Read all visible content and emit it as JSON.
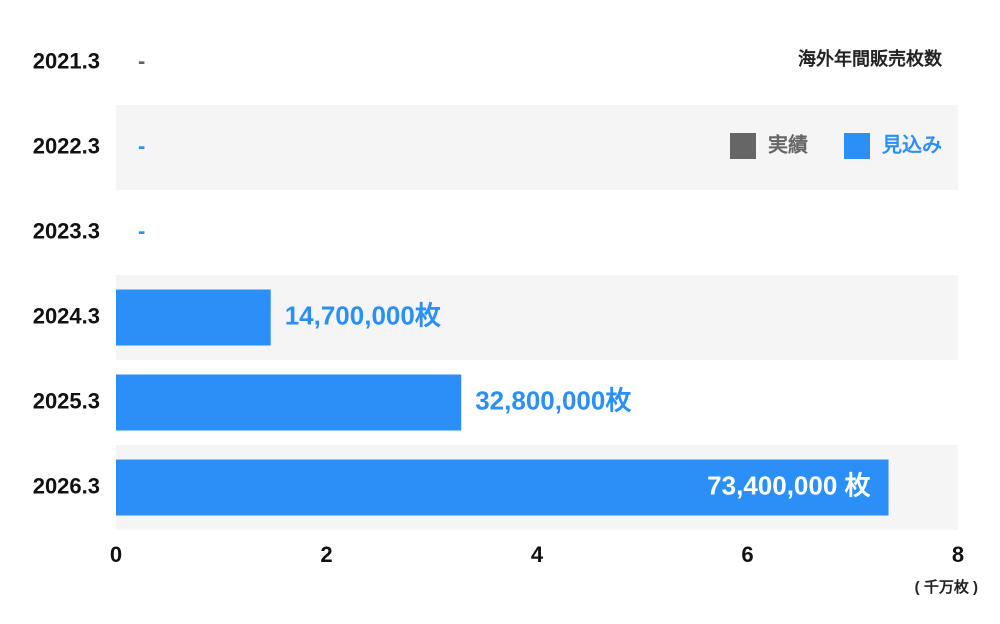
{
  "chart_data": {
    "type": "bar",
    "orientation": "horizontal",
    "title": "海外年間販売枚数",
    "categories": [
      "2021.3",
      "2022.3",
      "2023.3",
      "2024.3",
      "2025.3",
      "2026.3"
    ],
    "series": [
      {
        "name": "実績",
        "color": "#666666",
        "values": [
          null,
          null,
          null,
          null,
          null,
          null
        ],
        "value_labels": [
          "-",
          null,
          null,
          null,
          null,
          null
        ]
      },
      {
        "name": "見込み",
        "color": "#2b8ff8",
        "values": [
          null,
          null,
          null,
          1.47,
          3.28,
          7.34
        ],
        "value_labels": [
          null,
          "-",
          "-",
          "14,700,000枚",
          "32,800,000枚",
          "73,400,000 枚"
        ]
      }
    ],
    "xlim": [
      0,
      8
    ],
    "xticks": [
      0,
      2,
      4,
      6,
      8
    ],
    "xlabel": "( 千万枚 )",
    "legend": "top-right"
  }
}
